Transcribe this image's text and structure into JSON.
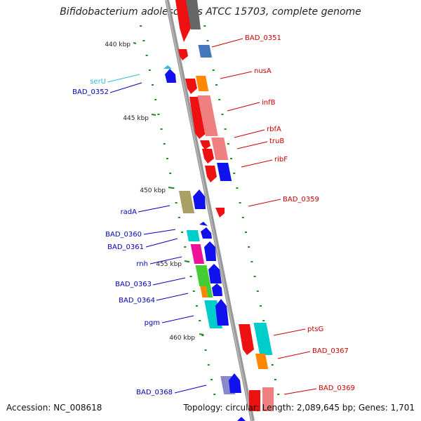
{
  "title": "Bifidobacterium adolescentis ATCC 15703, complete genome",
  "footer": {
    "accession": "Accession: NC_008618",
    "summary": "Topology: circular; Length: 2,089,645 bp; Genes: 1,701"
  },
  "colors": {
    "backbone": "#999999",
    "tick": "#228B22",
    "right_label": "#cc0000",
    "left_label": "#0000bb",
    "trna_label": "#33bbdd"
  },
  "kbp_ticks": [
    "440 kbp",
    "445 kbp",
    "450 kbp",
    "455 kbp",
    "460 kbp"
  ],
  "right_genes": [
    "BAD_0351",
    "nusA",
    "infB",
    "rbfA",
    "truB",
    "ribF",
    "BAD_0359",
    "ptsG",
    "BAD_0367",
    "BAD_0369"
  ],
  "left_genes": [
    "serU",
    "BAD_0352",
    "radA",
    "BAD_0360",
    "BAD_0361",
    "rnh",
    "BAD_0363",
    "BAD_0364",
    "pgm",
    "BAD_0368"
  ]
}
